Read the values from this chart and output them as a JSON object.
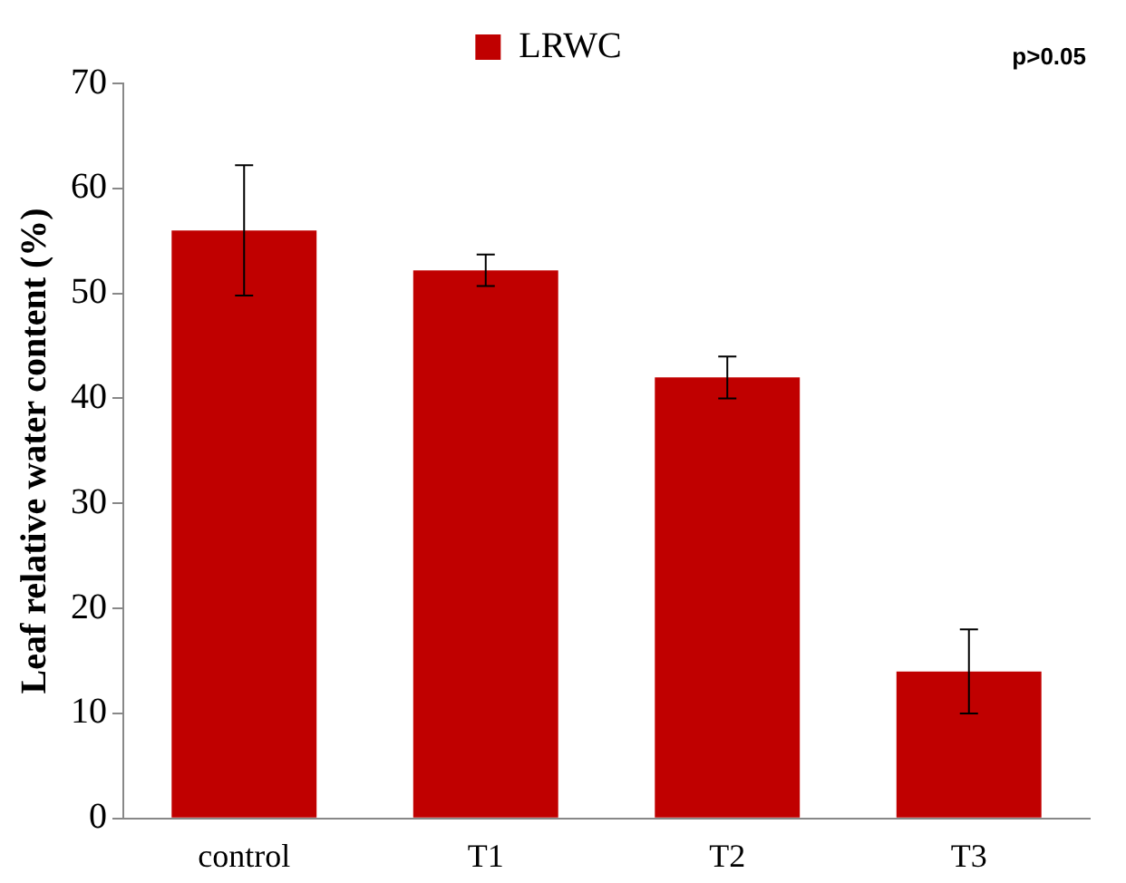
{
  "chart_data": {
    "type": "bar",
    "ylabel": "Leaf relative water content (%)",
    "categories": [
      "control",
      "T1",
      "T2",
      "T3"
    ],
    "series": [
      {
        "name": "LRWC",
        "color": "#c00000",
        "values": [
          56,
          52.2,
          42,
          14
        ],
        "errors": [
          6.2,
          1.5,
          2,
          4
        ]
      }
    ],
    "ylim": [
      0,
      70
    ],
    "yticks": [
      0,
      10,
      20,
      30,
      40,
      50,
      60,
      70
    ],
    "grid": false,
    "legend": "top",
    "annotations": [
      "p>0.05"
    ]
  }
}
